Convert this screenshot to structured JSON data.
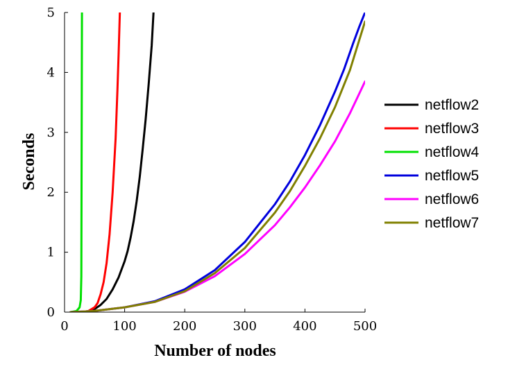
{
  "chart_data": {
    "type": "line",
    "title": "",
    "xlabel": "Number of nodes",
    "ylabel": "Seconds",
    "xlim": [
      0,
      500
    ],
    "ylim": [
      0,
      5
    ],
    "xticks": [
      0,
      100,
      200,
      300,
      400,
      500
    ],
    "yticks": [
      0,
      1,
      2,
      3,
      4,
      5
    ],
    "xtick_labels": [
      "0",
      "100",
      "200",
      "300",
      "400",
      "500"
    ],
    "ytick_labels": [
      "0",
      "1",
      "2",
      "3",
      "4",
      "5"
    ],
    "grid": false,
    "legend_position": "right",
    "series": [
      {
        "name": "netflow2",
        "color": "#000000",
        "x": [
          10,
          30,
          40,
          50,
          60,
          70,
          80,
          90,
          100,
          105,
          110,
          115,
          120,
          125,
          130,
          135,
          140,
          145,
          148
        ],
        "y": [
          0,
          0,
          0.02,
          0.05,
          0.12,
          0.22,
          0.38,
          0.58,
          0.85,
          1.02,
          1.25,
          1.52,
          1.85,
          2.25,
          2.72,
          3.22,
          3.8,
          4.45,
          5.0
        ]
      },
      {
        "name": "netflow3",
        "color": "#ff0000",
        "x": [
          30,
          40,
          50,
          55,
          60,
          65,
          70,
          75,
          80,
          85,
          88,
          90,
          92
        ],
        "y": [
          0,
          0.02,
          0.08,
          0.15,
          0.3,
          0.5,
          0.82,
          1.3,
          2.0,
          2.9,
          3.7,
          4.3,
          5.0
        ]
      },
      {
        "name": "netflow4",
        "color": "#00e000",
        "x": [
          10,
          20,
          25,
          27,
          28,
          29
        ],
        "y": [
          0,
          0.02,
          0.08,
          0.2,
          0.6,
          5.0
        ]
      },
      {
        "name": "netflow5",
        "color": "#0000dd",
        "x": [
          10,
          50,
          100,
          150,
          200,
          250,
          300,
          350,
          375,
          400,
          425,
          450,
          465,
          480,
          490,
          500
        ],
        "y": [
          0,
          0.02,
          0.08,
          0.18,
          0.38,
          0.7,
          1.17,
          1.8,
          2.18,
          2.62,
          3.12,
          3.68,
          4.05,
          4.48,
          4.75,
          5.0
        ]
      },
      {
        "name": "netflow6",
        "color": "#ff00ff",
        "x": [
          10,
          50,
          100,
          150,
          200,
          250,
          300,
          350,
          375,
          400,
          425,
          450,
          475,
          500
        ],
        "y": [
          0,
          0.02,
          0.08,
          0.17,
          0.34,
          0.6,
          0.97,
          1.45,
          1.75,
          2.08,
          2.45,
          2.85,
          3.32,
          3.85
        ]
      },
      {
        "name": "netflow7",
        "color": "#808000",
        "x": [
          10,
          50,
          100,
          150,
          200,
          250,
          300,
          350,
          375,
          400,
          425,
          450,
          475,
          500
        ],
        "y": [
          0,
          0.02,
          0.08,
          0.17,
          0.35,
          0.65,
          1.07,
          1.66,
          2.02,
          2.44,
          2.9,
          3.42,
          4.04,
          4.85
        ]
      }
    ]
  }
}
